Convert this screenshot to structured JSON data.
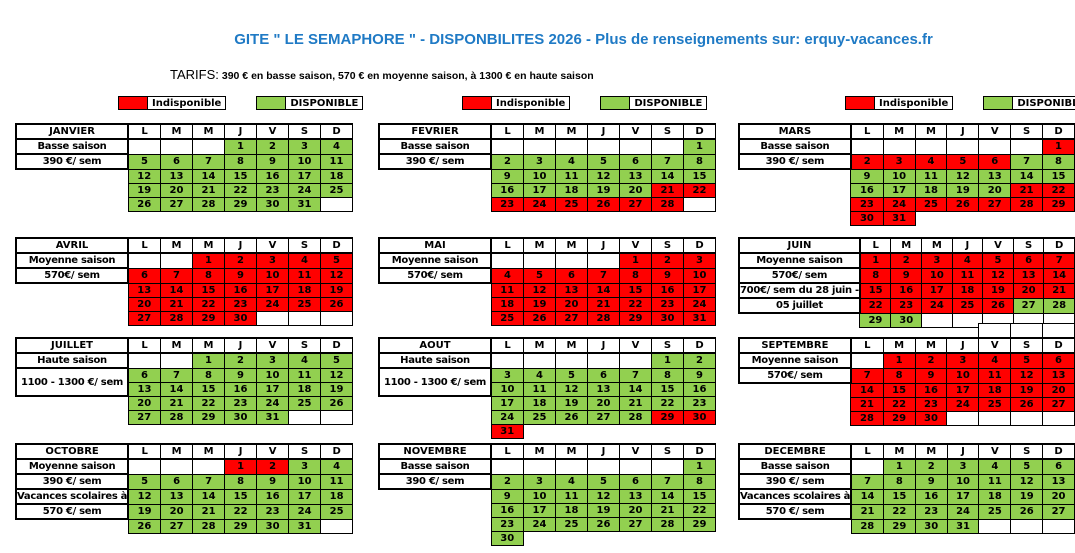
{
  "title": "GITE \" LE SEMAPHORE \" - DISPONBILITES 2026 - Plus de renseignements sur: erquy-vacances.fr",
  "tarifs": {
    "label": "TARIFS:",
    "text": "390 € en basse saison, 570 € en moyenne saison, à 1300 € en haute saison"
  },
  "legend": {
    "unavailable": "Indisponible",
    "available": "DISPONIBLE"
  },
  "colors": {
    "available": "#92D050",
    "unavailable": "#FF0000",
    "title_blue": "#1F7AC5"
  },
  "day_headers": [
    "L",
    "M",
    "M",
    "J",
    "V",
    "S",
    "D"
  ],
  "months": [
    {
      "name": "JANVIER",
      "labels": [
        {
          "text": "Basse saison",
          "rows": 1
        },
        {
          "text": "390 €/ sem",
          "rows": 1
        }
      ],
      "weeks": [
        [
          "w",
          "w",
          "w",
          "1g",
          "2g",
          "3g",
          "4g"
        ],
        [
          "5g",
          "6g",
          "7g",
          "8g",
          "9g",
          "10g",
          "11g"
        ],
        [
          "12g",
          "13g",
          "14g",
          "15g",
          "16g",
          "17g",
          "18g"
        ],
        [
          "19g",
          "20g",
          "21g",
          "22g",
          "23g",
          "24g",
          "25g"
        ],
        [
          "26g",
          "27g",
          "28g",
          "29g",
          "30g",
          "31g",
          "w"
        ]
      ]
    },
    {
      "name": "FEVRIER",
      "labels": [
        {
          "text": "Basse saison",
          "rows": 1
        },
        {
          "text": "390 €/ sem",
          "rows": 1
        }
      ],
      "weeks": [
        [
          "w",
          "w",
          "w",
          "w",
          "w",
          "w",
          "1g"
        ],
        [
          "2g",
          "3g",
          "4g",
          "5g",
          "6g",
          "7g",
          "8g"
        ],
        [
          "9g",
          "10g",
          "11g",
          "12g",
          "13g",
          "14g",
          "15g"
        ],
        [
          "16g",
          "17g",
          "18g",
          "19g",
          "20g",
          "21r",
          "22r"
        ],
        [
          "23r",
          "24r",
          "25r",
          "26r",
          "27r",
          "28r",
          "w"
        ]
      ]
    },
    {
      "name": "MARS",
      "labels": [
        {
          "text": "Basse saison",
          "rows": 1
        },
        {
          "text": "390 €/ sem",
          "rows": 1
        }
      ],
      "weeks": [
        [
          "w",
          "w",
          "w",
          "w",
          "w",
          "w",
          "1r"
        ],
        [
          "2r",
          "3r",
          "4r",
          "5r",
          "6r",
          "7g",
          "8g"
        ],
        [
          "9g",
          "10g",
          "11g",
          "12g",
          "13g",
          "14g",
          "15g"
        ],
        [
          "16g",
          "17g",
          "18g",
          "19g",
          "20g",
          "21r",
          "22r"
        ],
        [
          "23r",
          "24r",
          "25r",
          "26r",
          "27r",
          "28r",
          "29r"
        ],
        [
          "30r",
          "31r",
          "x",
          "x",
          "x",
          "x",
          "x"
        ]
      ]
    },
    {
      "name": "AVRIL",
      "labels": [
        {
          "text": "Moyenne saison",
          "rows": 1
        },
        {
          "text": "570€/ sem",
          "rows": 1
        }
      ],
      "weeks": [
        [
          "w",
          "w",
          "1r",
          "2r",
          "3r",
          "4r",
          "5r"
        ],
        [
          "6r",
          "7r",
          "8r",
          "9r",
          "10r",
          "11r",
          "12r"
        ],
        [
          "13r",
          "14r",
          "15r",
          "16r",
          "17r",
          "18r",
          "19r"
        ],
        [
          "20r",
          "21r",
          "22r",
          "23r",
          "24r",
          "25r",
          "26r"
        ],
        [
          "27r",
          "28r",
          "29r",
          "30r",
          "w",
          "w",
          "w"
        ]
      ]
    },
    {
      "name": "MAI",
      "labels": [
        {
          "text": "Moyenne saison",
          "rows": 1
        },
        {
          "text": "570€/ sem",
          "rows": 1
        }
      ],
      "weeks": [
        [
          "w",
          "w",
          "w",
          "w",
          "1r",
          "2r",
          "3r"
        ],
        [
          "4r",
          "5r",
          "6r",
          "7r",
          "8r",
          "9r",
          "10r"
        ],
        [
          "11r",
          "12r",
          "13r",
          "14r",
          "15r",
          "16r",
          "17r"
        ],
        [
          "18r",
          "19r",
          "20r",
          "21r",
          "22r",
          "23r",
          "24r"
        ],
        [
          "25r",
          "26r",
          "27r",
          "28r",
          "29r",
          "30r",
          "31r"
        ]
      ]
    },
    {
      "name": "JUIN",
      "labels": [
        {
          "text": "Moyenne saison",
          "rows": 1
        },
        {
          "text": "570€/ sem",
          "rows": 1
        },
        {
          "text": "700€/ sem du 28 juin -",
          "rows": 1
        },
        {
          "text": "05 juillet",
          "rows": 1
        }
      ],
      "weeks": [
        [
          "1r",
          "2r",
          "3r",
          "4r",
          "5r",
          "6r",
          "7r"
        ],
        [
          "8r",
          "9r",
          "10r",
          "11r",
          "12r",
          "13r",
          "14r"
        ],
        [
          "15r",
          "16r",
          "17r",
          "18r",
          "19r",
          "20r",
          "21r"
        ],
        [
          "22r",
          "23r",
          "24r",
          "25r",
          "26r",
          "27g",
          "28g"
        ],
        [
          "29g",
          "30g",
          "w",
          "w",
          "w",
          "w",
          "w"
        ]
      ]
    },
    {
      "name": "JUILLET",
      "labels": [
        {
          "text": "Haute saison",
          "rows": 1
        },
        {
          "text": "1100 - 1300 €/ sem",
          "rows": 2
        }
      ],
      "weeks": [
        [
          "w",
          "w",
          "1g",
          "2g",
          "3g",
          "4g",
          "5g"
        ],
        [
          "6g",
          "7g",
          "8g",
          "9g",
          "10g",
          "11g",
          "12g"
        ],
        [
          "13g",
          "14g",
          "15g",
          "16g",
          "17g",
          "18g",
          "19g"
        ],
        [
          "20g",
          "21g",
          "22g",
          "23g",
          "24g",
          "25g",
          "26g"
        ],
        [
          "27g",
          "28g",
          "29g",
          "30g",
          "31g",
          "w",
          "w"
        ]
      ]
    },
    {
      "name": "AOUT",
      "labels": [
        {
          "text": "Haute saison",
          "rows": 1
        },
        {
          "text": "1100 - 1300 €/ sem",
          "rows": 2
        }
      ],
      "weeks": [
        [
          "w",
          "w",
          "w",
          "w",
          "w",
          "1g",
          "2g"
        ],
        [
          "3g",
          "4g",
          "5g",
          "6g",
          "7g",
          "8g",
          "9g"
        ],
        [
          "10g",
          "11g",
          "12g",
          "13g",
          "14g",
          "15g",
          "16g"
        ],
        [
          "17g",
          "18g",
          "19g",
          "20g",
          "21g",
          "22g",
          "23g"
        ],
        [
          "24g",
          "25g",
          "26g",
          "27g",
          "28g",
          "29r",
          "30r"
        ],
        [
          "31r",
          "x",
          "x",
          "x",
          "x",
          "x",
          "x"
        ]
      ]
    },
    {
      "name": "SEPTEMBRE",
      "labels": [
        {
          "text": "Moyenne saison",
          "rows": 1
        },
        {
          "text": "570€/ sem",
          "rows": 1
        }
      ],
      "pre_row": [
        "x",
        "x",
        "x",
        "x",
        "w",
        "w",
        "w"
      ],
      "weeks": [
        [
          "w",
          "1r",
          "2r",
          "3r",
          "4r",
          "5r",
          "6r"
        ],
        [
          "7r",
          "8r",
          "9r",
          "10r",
          "11r",
          "12r",
          "13r"
        ],
        [
          "14r",
          "15r",
          "16r",
          "17r",
          "18r",
          "19r",
          "20r"
        ],
        [
          "21r",
          "22r",
          "23r",
          "24r",
          "25r",
          "26r",
          "27r"
        ],
        [
          "28r",
          "29r",
          "30r",
          "w",
          "w",
          "w",
          "w"
        ]
      ]
    },
    {
      "name": "OCTOBRE",
      "labels": [
        {
          "text": "Moyenne saison",
          "rows": 1
        },
        {
          "text": "390 €/ sem",
          "rows": 1
        },
        {
          "text": "Vacances scolaires à",
          "rows": 1
        },
        {
          "text": "570 €/ sem",
          "rows": 1
        }
      ],
      "weeks": [
        [
          "w",
          "w",
          "w",
          "1r",
          "2r",
          "3g",
          "4g"
        ],
        [
          "5g",
          "6g",
          "7g",
          "8g",
          "9g",
          "10g",
          "11g"
        ],
        [
          "12g",
          "13g",
          "14g",
          "15g",
          "16g",
          "17g",
          "18g"
        ],
        [
          "19g",
          "20g",
          "21g",
          "22g",
          "23g",
          "24g",
          "25g"
        ],
        [
          "26g",
          "27g",
          "28g",
          "29g",
          "30g",
          "31g",
          "w"
        ]
      ]
    },
    {
      "name": "NOVEMBRE",
      "labels": [
        {
          "text": "Basse saison",
          "rows": 1
        },
        {
          "text": "390 €/ sem",
          "rows": 1
        }
      ],
      "weeks": [
        [
          "w",
          "w",
          "w",
          "w",
          "w",
          "w",
          "1g"
        ],
        [
          "2g",
          "3g",
          "4g",
          "5g",
          "6g",
          "7g",
          "8g"
        ],
        [
          "9g",
          "10g",
          "11g",
          "12g",
          "13g",
          "14g",
          "15g"
        ],
        [
          "16g",
          "17g",
          "18g",
          "19g",
          "20g",
          "21g",
          "22g"
        ],
        [
          "23g",
          "24g",
          "25g",
          "26g",
          "27g",
          "28g",
          "29g"
        ],
        [
          "30g",
          "x",
          "x",
          "x",
          "x",
          "x",
          "x"
        ]
      ]
    },
    {
      "name": "DECEMBRE",
      "labels": [
        {
          "text": "Basse saison",
          "rows": 1
        },
        {
          "text": "390 €/ sem",
          "rows": 1
        },
        {
          "text": "Vacances scolaires à",
          "rows": 1
        },
        {
          "text": "570 €/ sem",
          "rows": 1
        }
      ],
      "weeks": [
        [
          "w",
          "1g",
          "2g",
          "3g",
          "4g",
          "5g",
          "6g"
        ],
        [
          "7g",
          "8g",
          "9g",
          "10g",
          "11g",
          "12g",
          "13g"
        ],
        [
          "14g",
          "15g",
          "16g",
          "17g",
          "18g",
          "19g",
          "20g"
        ],
        [
          "21g",
          "22g",
          "23g",
          "24g",
          "25g",
          "26g",
          "27g"
        ],
        [
          "28g",
          "29g",
          "30g",
          "31g",
          "w",
          "w",
          "w"
        ]
      ]
    }
  ]
}
